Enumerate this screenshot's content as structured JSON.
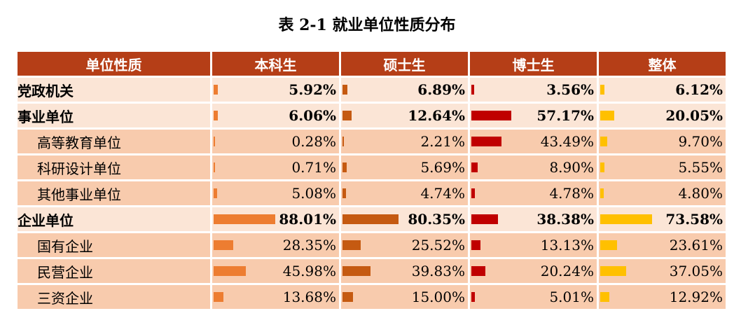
{
  "title": "表 2-1    就业单位性质分布",
  "headers": [
    "单位性质",
    "本科生",
    "硕士生",
    "博士生",
    "整体"
  ],
  "colors": {
    "header_bg": "#b53e17",
    "main_row_bg": "#fbe5d6",
    "sub_row_bg": "#f8cbad",
    "bar_bachelor": "#ed7d31",
    "bar_master": "#c55a11",
    "bar_doctor": "#c00000",
    "bar_overall": "#ffc000"
  },
  "rows": [
    {
      "label": "党政机关",
      "level": "main",
      "values": [
        "5.92%",
        "6.89%",
        "3.56%",
        "6.12%"
      ],
      "nums": [
        5.92,
        6.89,
        3.56,
        6.12
      ]
    },
    {
      "label": "事业单位",
      "level": "main",
      "values": [
        "6.06%",
        "12.64%",
        "57.17%",
        "20.05%"
      ],
      "nums": [
        6.06,
        12.64,
        57.17,
        20.05
      ]
    },
    {
      "label": "高等教育单位",
      "level": "sub",
      "values": [
        "0.28%",
        "2.21%",
        "43.49%",
        "9.70%"
      ],
      "nums": [
        0.28,
        2.21,
        43.49,
        9.7
      ]
    },
    {
      "label": "科研设计单位",
      "level": "sub",
      "values": [
        "0.71%",
        "5.69%",
        "8.90%",
        "5.55%"
      ],
      "nums": [
        0.71,
        5.69,
        8.9,
        5.55
      ]
    },
    {
      "label": "其他事业单位",
      "level": "sub",
      "values": [
        "5.08%",
        "4.74%",
        "4.78%",
        "4.80%"
      ],
      "nums": [
        5.08,
        4.74,
        4.78,
        4.8
      ]
    },
    {
      "label": "企业单位",
      "level": "main",
      "values": [
        "88.01%",
        "80.35%",
        "38.38%",
        "73.58%"
      ],
      "nums": [
        88.01,
        80.35,
        38.38,
        73.58
      ]
    },
    {
      "label": "国有企业",
      "level": "sub",
      "values": [
        "28.35%",
        "25.52%",
        "13.13%",
        "23.61%"
      ],
      "nums": [
        28.35,
        25.52,
        13.13,
        23.61
      ]
    },
    {
      "label": "民营企业",
      "level": "sub",
      "values": [
        "45.98%",
        "39.83%",
        "20.24%",
        "37.05%"
      ],
      "nums": [
        45.98,
        39.83,
        20.24,
        37.05
      ]
    },
    {
      "label": "三资企业",
      "level": "sub",
      "values": [
        "13.68%",
        "15.00%",
        "5.01%",
        "12.92%"
      ],
      "nums": [
        13.68,
        15.0,
        5.01,
        12.92
      ]
    }
  ]
}
